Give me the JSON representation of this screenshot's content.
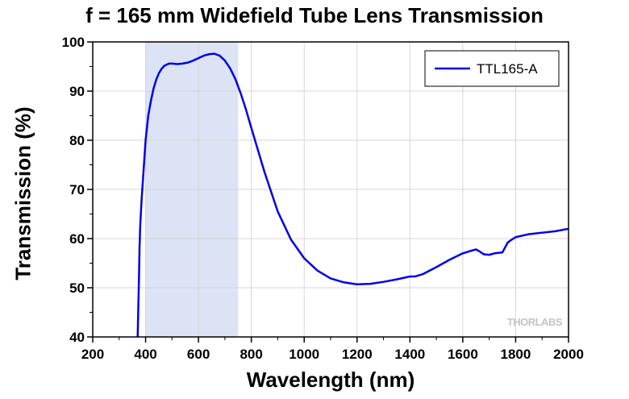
{
  "chart_data": {
    "type": "line",
    "title": "f = 165 mm Widefield Tube Lens Transmission",
    "xlabel": "Wavelength (nm)",
    "ylabel": "Transmission (%)",
    "xlim": [
      200,
      2000
    ],
    "ylim": [
      40,
      100
    ],
    "xticks": [
      200,
      400,
      600,
      800,
      1000,
      1200,
      1400,
      1600,
      1800,
      2000
    ],
    "yticks": [
      40,
      50,
      60,
      70,
      80,
      90,
      100
    ],
    "grid": true,
    "legend_position": "top-right",
    "highlight_band": [
      400,
      750
    ],
    "colors": {
      "series": "#0000e6",
      "band": "#dbe3f5",
      "grid": "#d6d6d6"
    },
    "series": [
      {
        "name": "TTL165-A",
        "x": [
          370,
          372,
          375,
          377,
          380,
          385,
          390,
          395,
          400,
          410,
          420,
          430,
          440,
          450,
          460,
          470,
          480,
          490,
          500,
          520,
          540,
          560,
          580,
          600,
          620,
          640,
          660,
          680,
          700,
          720,
          740,
          760,
          780,
          800,
          850,
          900,
          950,
          1000,
          1050,
          1100,
          1150,
          1200,
          1250,
          1300,
          1350,
          1400,
          1420,
          1450,
          1500,
          1550,
          1600,
          1630,
          1650,
          1660,
          1680,
          1700,
          1720,
          1750,
          1770,
          1780,
          1800,
          1850,
          1900,
          1950,
          2000
        ],
        "y": [
          40,
          45,
          52,
          58,
          63,
          68,
          72,
          76,
          80,
          85,
          88,
          90.5,
          92.3,
          93.6,
          94.5,
          95.1,
          95.4,
          95.6,
          95.6,
          95.5,
          95.6,
          95.8,
          96.2,
          96.7,
          97.2,
          97.5,
          97.6,
          97.2,
          96.2,
          94.6,
          92.4,
          89.5,
          86.2,
          82.5,
          73.5,
          65.5,
          59.8,
          56,
          53.5,
          51.9,
          51.1,
          50.7,
          50.8,
          51.2,
          51.7,
          52.3,
          52.3,
          52.8,
          54.2,
          55.7,
          57,
          57.5,
          57.8,
          57.5,
          56.8,
          56.7,
          57,
          57.2,
          59.2,
          59.6,
          60.3,
          60.9,
          61.2,
          61.5,
          62
        ]
      }
    ]
  }
}
